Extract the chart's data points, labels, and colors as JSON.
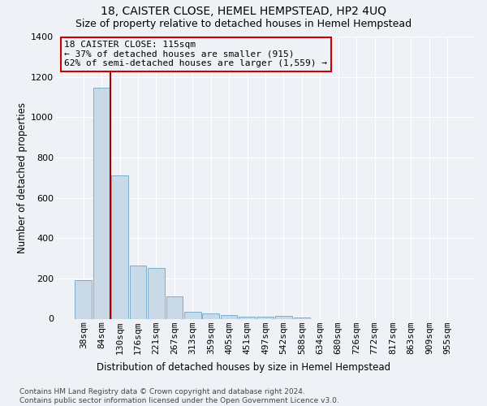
{
  "title": "18, CAISTER CLOSE, HEMEL HEMPSTEAD, HP2 4UQ",
  "subtitle": "Size of property relative to detached houses in Hemel Hempstead",
  "xlabel": "Distribution of detached houses by size in Hemel Hempstead",
  "ylabel": "Number of detached properties",
  "categories": [
    "38sqm",
    "84sqm",
    "130sqm",
    "176sqm",
    "221sqm",
    "267sqm",
    "313sqm",
    "359sqm",
    "405sqm",
    "451sqm",
    "497sqm",
    "542sqm",
    "588sqm",
    "634sqm",
    "680sqm",
    "726sqm",
    "772sqm",
    "817sqm",
    "863sqm",
    "909sqm",
    "955sqm"
  ],
  "values": [
    190,
    1145,
    710,
    265,
    250,
    110,
    35,
    28,
    20,
    12,
    12,
    15,
    8,
    0,
    0,
    0,
    0,
    0,
    0,
    0,
    0
  ],
  "bar_color": "#c9d9e8",
  "bar_edge_color": "#7faec8",
  "vline_color": "#aa0000",
  "annotation_text": "18 CAISTER CLOSE: 115sqm\n← 37% of detached houses are smaller (915)\n62% of semi-detached houses are larger (1,559) →",
  "annotation_box_color": "#cc0000",
  "ylim": [
    0,
    1400
  ],
  "yticks": [
    0,
    200,
    400,
    600,
    800,
    1000,
    1200,
    1400
  ],
  "bg_color": "#eef2f7",
  "grid_color": "#ffffff",
  "footer": "Contains HM Land Registry data © Crown copyright and database right 2024.\nContains public sector information licensed under the Open Government Licence v3.0.",
  "title_fontsize": 10,
  "subtitle_fontsize": 9,
  "xlabel_fontsize": 8.5,
  "ylabel_fontsize": 8.5,
  "tick_fontsize": 8,
  "footer_fontsize": 6.5
}
